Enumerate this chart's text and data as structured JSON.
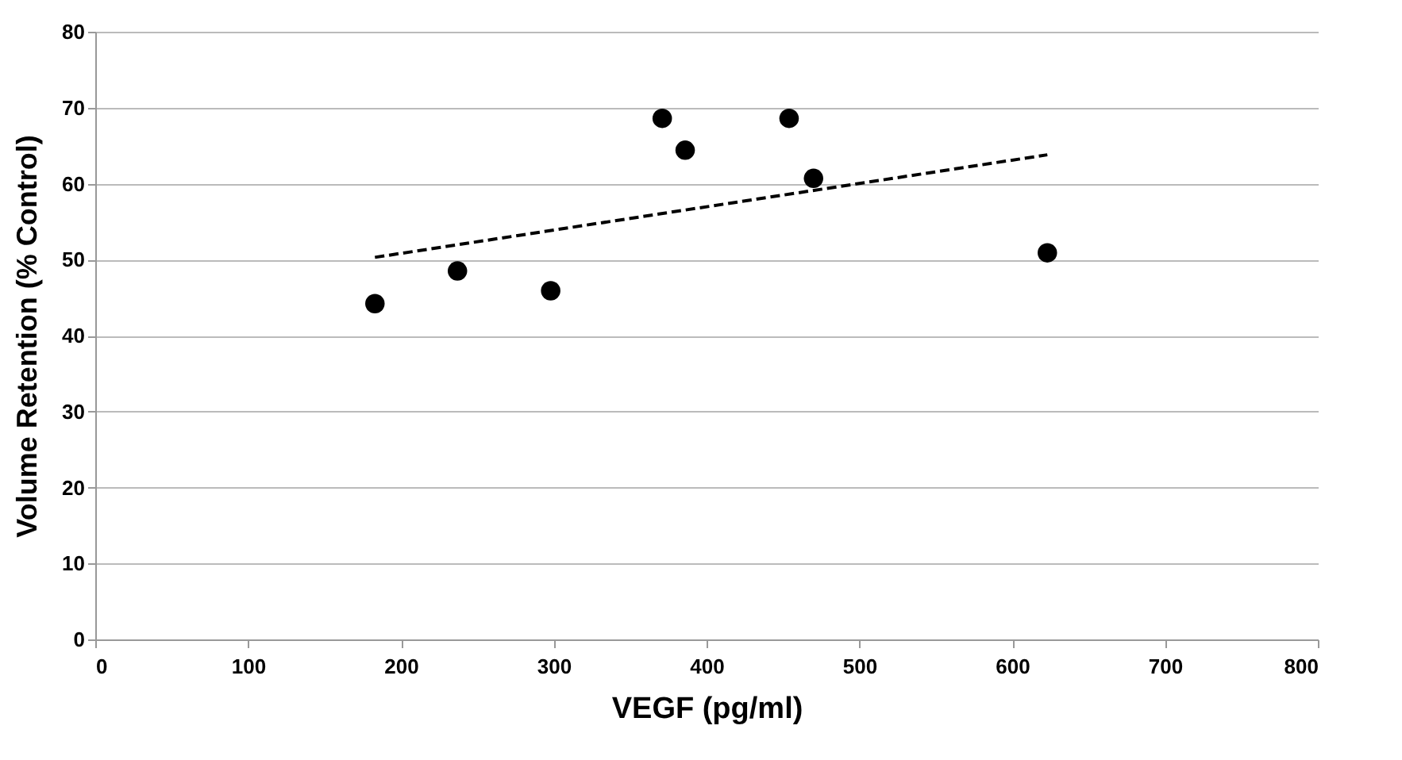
{
  "chart_data": {
    "type": "scatter",
    "xlabel": "VEGF (pg/ml)",
    "ylabel": "Volume Retention (% Control)",
    "xlim": [
      0,
      800
    ],
    "xticks": [
      0,
      100,
      200,
      300,
      400,
      500,
      600,
      700,
      800
    ],
    "ylim": [
      0,
      80
    ],
    "yticks": [
      0,
      10,
      20,
      30,
      40,
      50,
      60,
      70,
      80
    ],
    "grid": "y",
    "series": [
      {
        "marker": "circle",
        "color": "#000000",
        "x": [
          183,
          237,
          298,
          371,
          386,
          454,
          470,
          623
        ],
        "values": [
          44.2,
          48.5,
          45.9,
          68.6,
          64.4,
          68.6,
          60.7,
          50.9
        ]
      },
      {
        "type": "line",
        "color": "#000000",
        "line_style": "dashed",
        "x": [
          183,
          623
        ],
        "values": [
          50.3,
          63.8
        ]
      }
    ]
  }
}
